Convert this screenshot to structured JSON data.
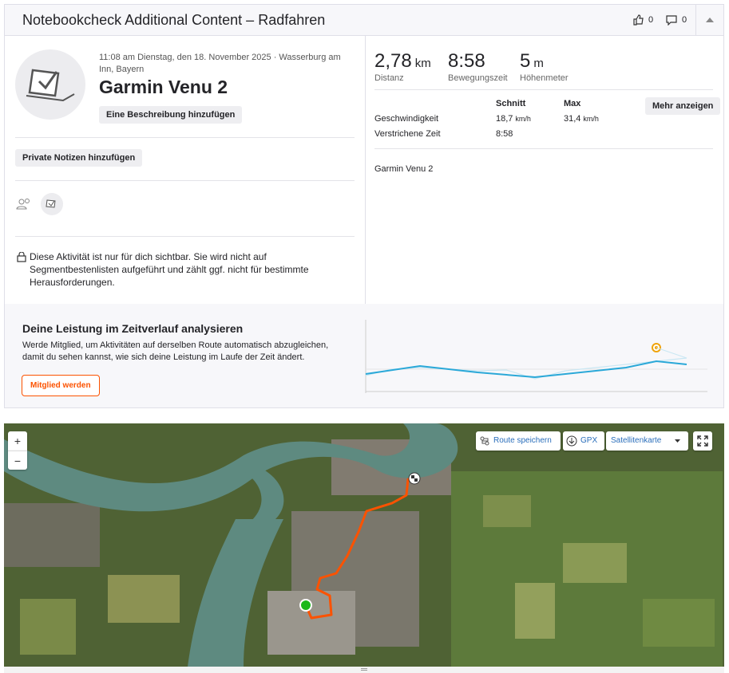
{
  "header": {
    "title": "Notebookcheck Additional Content – Radfahren",
    "kudos": "0",
    "comments": "0"
  },
  "activity": {
    "meta": "11:08 am Dienstag, den 18. November 2025 · Wasserburg am Inn, Bayern",
    "name": "Garmin Venu 2",
    "add_description": "Eine Beschreibung hinzufügen",
    "private_notes": "Private Notizen hinzufügen",
    "privacy_note": "Diese Aktivität ist nur für dich sichtbar. Sie wird nicht auf Segmentbestenlisten aufgeführt und zählt ggf. nicht für bestimmte Herausforderungen."
  },
  "stats": {
    "primary": [
      {
        "value": "2,78",
        "unit": "km",
        "label": "Distanz"
      },
      {
        "value": "8:58",
        "label": "Bewegungszeit"
      },
      {
        "value": "5",
        "unit": "m",
        "label": "Höhenmeter"
      }
    ],
    "avg_header": "Schnitt",
    "max_header": "Max",
    "more_button": "Mehr anzeigen",
    "rows": [
      {
        "label": "Geschwindigkeit",
        "avg": "18,7",
        "avg_unit": "km/h",
        "max": "31,4",
        "max_unit": "km/h"
      },
      {
        "label": "Verstrichene Zeit",
        "avg": "8:58"
      }
    ],
    "device": "Garmin Venu 2"
  },
  "upsell": {
    "title": "Deine Leistung im Zeitverlauf analysieren",
    "text": "Werde Mitglied, um Aktivitäten auf derselben Route automatisch abzugleichen, damit du sehen kannst, wie sich deine Leistung im Laufe der Zeit ändert.",
    "button": "Mitglied werden"
  },
  "map": {
    "zoom_in": "+",
    "zoom_out": "−",
    "save_route": "Route speichern",
    "gpx": "GPX",
    "map_type": "Satellitenkarte"
  }
}
